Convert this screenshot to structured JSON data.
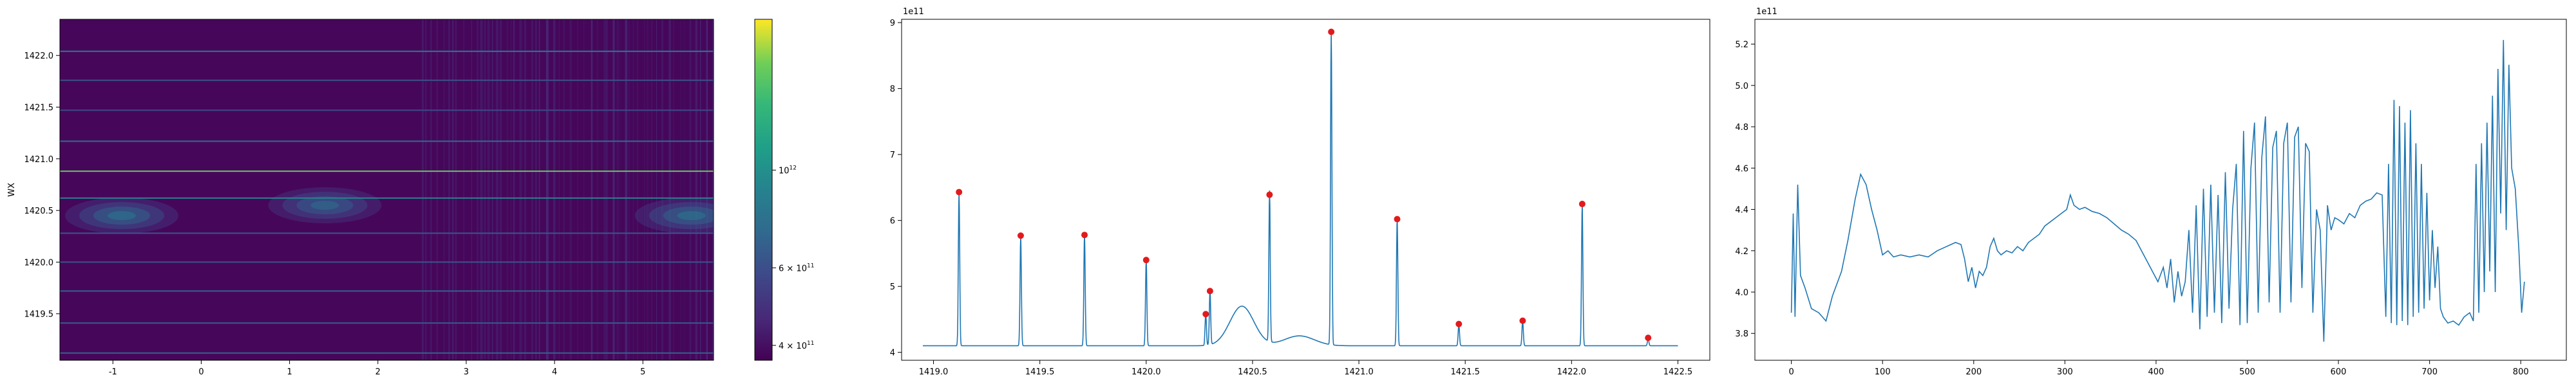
{
  "chart_data": [
    {
      "type": "heatmap",
      "title": "",
      "xlabel": "",
      "ylabel": "WX",
      "xlim": [
        -1.6,
        5.8
      ],
      "ylim": [
        1419.05,
        1422.35
      ],
      "x_ticks": [
        "-1",
        "0",
        "1",
        "2",
        "3",
        "4",
        "5"
      ],
      "x_tick_values": [
        -1,
        0,
        1,
        2,
        3,
        4,
        5
      ],
      "y_ticks": [
        "1419.5",
        "1420.0",
        "1420.5",
        "1421.0",
        "1421.5",
        "1422.0"
      ],
      "y_tick_values": [
        1419.5,
        1420.0,
        1420.5,
        1421.0,
        1421.5,
        1422.0
      ],
      "colormap": "viridis",
      "colorbar": {
        "scale": "log",
        "ticks": [
          {
            "value": 400000000000,
            "label": "4 × 10^11",
            "base": "4 × 10",
            "exp": "11"
          },
          {
            "value": 600000000000,
            "label": "6 × 10^11",
            "base": "6 × 10",
            "exp": "11"
          },
          {
            "value": 1000000000000,
            "label": "10^12",
            "base": "10",
            "exp": "12"
          }
        ],
        "range": [
          370000000000,
          2200000000000
        ]
      },
      "horizontal_lines": [
        {
          "y": 1419.12,
          "level": 0.35
        },
        {
          "y": 1419.41,
          "level": 0.32
        },
        {
          "y": 1419.72,
          "level": 0.35
        },
        {
          "y": 1420.0,
          "level": 0.3
        },
        {
          "y": 1420.28,
          "level": 0.3
        },
        {
          "y": 1420.62,
          "level": 0.5
        },
        {
          "y": 1420.88,
          "level": 0.85
        },
        {
          "y": 1421.17,
          "level": 0.4
        },
        {
          "y": 1421.47,
          "level": 0.25
        },
        {
          "y": 1421.76,
          "level": 0.28
        },
        {
          "y": 1422.04,
          "level": 0.45
        }
      ],
      "blobs": [
        {
          "x": -0.9,
          "y": 1420.45,
          "level": 0.5
        },
        {
          "x": 1.4,
          "y": 1420.55,
          "level": 0.45
        },
        {
          "x": 5.55,
          "y": 1420.45,
          "level": 0.5
        }
      ]
    },
    {
      "type": "line",
      "title": "",
      "xlabel": "",
      "ylabel": "",
      "offset_label": "1e11",
      "xlim": [
        1418.85,
        1422.65
      ],
      "ylim": [
        3.88,
        9.05
      ],
      "x_ticks": [
        "1419.0",
        "1419.5",
        "1420.0",
        "1420.5",
        "1421.0",
        "1421.5",
        "1422.0",
        "1422.5"
      ],
      "x_tick_values": [
        1419.0,
        1419.5,
        1420.0,
        1420.5,
        1421.0,
        1421.5,
        1422.0,
        1422.5
      ],
      "y_ticks": [
        "4",
        "5",
        "6",
        "7",
        "8",
        "9"
      ],
      "y_tick_values": [
        4,
        5,
        6,
        7,
        8,
        9
      ],
      "baseline": 4.1,
      "peaks": [
        {
          "x": 1419.12,
          "y": 6.43
        },
        {
          "x": 1419.41,
          "y": 5.77
        },
        {
          "x": 1419.71,
          "y": 5.78
        },
        {
          "x": 1420.0,
          "y": 5.4
        },
        {
          "x": 1420.28,
          "y": 4.58
        },
        {
          "x": 1420.3,
          "y": 4.93
        },
        {
          "x": 1420.58,
          "y": 6.39
        },
        {
          "x": 1420.87,
          "y": 8.86
        },
        {
          "x": 1421.18,
          "y": 6.02
        },
        {
          "x": 1421.47,
          "y": 4.43
        },
        {
          "x": 1421.77,
          "y": 4.48
        },
        {
          "x": 1422.05,
          "y": 6.25
        },
        {
          "x": 1422.36,
          "y": 4.22
        }
      ],
      "bumps": [
        {
          "x": 1420.45,
          "height": 0.6,
          "width": 0.08
        },
        {
          "x": 1420.72,
          "height": 0.15,
          "width": 0.1
        }
      ]
    },
    {
      "type": "line",
      "title": "",
      "xlabel": "",
      "ylabel": "",
      "offset_label": "1e11",
      "xlim": [
        -40,
        850
      ],
      "ylim": [
        3.67,
        5.32
      ],
      "x_ticks": [
        "0",
        "100",
        "200",
        "300",
        "400",
        "500",
        "600",
        "700",
        "800"
      ],
      "x_tick_values": [
        0,
        100,
        200,
        300,
        400,
        500,
        600,
        700,
        800
      ],
      "y_ticks": [
        "3.8",
        "4.0",
        "4.2",
        "4.4",
        "4.6",
        "4.8",
        "5.0",
        "5.2"
      ],
      "y_tick_values": [
        3.8,
        4.0,
        4.2,
        4.4,
        4.6,
        4.8,
        5.0,
        5.2
      ],
      "points": [
        [
          0,
          3.9
        ],
        [
          2,
          4.38
        ],
        [
          4,
          3.88
        ],
        [
          7,
          4.52
        ],
        [
          10,
          4.08
        ],
        [
          15,
          4.02
        ],
        [
          22,
          3.92
        ],
        [
          30,
          3.9
        ],
        [
          38,
          3.86
        ],
        [
          45,
          3.98
        ],
        [
          55,
          4.1
        ],
        [
          62,
          4.25
        ],
        [
          70,
          4.45
        ],
        [
          76,
          4.57
        ],
        [
          82,
          4.52
        ],
        [
          88,
          4.4
        ],
        [
          94,
          4.3
        ],
        [
          100,
          4.18
        ],
        [
          106,
          4.2
        ],
        [
          112,
          4.17
        ],
        [
          120,
          4.18
        ],
        [
          130,
          4.17
        ],
        [
          140,
          4.18
        ],
        [
          150,
          4.17
        ],
        [
          160,
          4.2
        ],
        [
          170,
          4.22
        ],
        [
          180,
          4.24
        ],
        [
          186,
          4.23
        ],
        [
          190,
          4.16
        ],
        [
          194,
          4.05
        ],
        [
          198,
          4.12
        ],
        [
          202,
          4.02
        ],
        [
          206,
          4.1
        ],
        [
          210,
          4.08
        ],
        [
          214,
          4.12
        ],
        [
          218,
          4.22
        ],
        [
          222,
          4.26
        ],
        [
          226,
          4.2
        ],
        [
          230,
          4.18
        ],
        [
          236,
          4.2
        ],
        [
          242,
          4.19
        ],
        [
          248,
          4.22
        ],
        [
          254,
          4.2
        ],
        [
          260,
          4.24
        ],
        [
          266,
          4.26
        ],
        [
          272,
          4.28
        ],
        [
          278,
          4.32
        ],
        [
          284,
          4.34
        ],
        [
          290,
          4.36
        ],
        [
          296,
          4.38
        ],
        [
          302,
          4.4
        ],
        [
          306,
          4.47
        ],
        [
          310,
          4.42
        ],
        [
          316,
          4.4
        ],
        [
          322,
          4.41
        ],
        [
          330,
          4.39
        ],
        [
          338,
          4.38
        ],
        [
          346,
          4.36
        ],
        [
          354,
          4.33
        ],
        [
          362,
          4.3
        ],
        [
          370,
          4.28
        ],
        [
          378,
          4.25
        ],
        [
          384,
          4.2
        ],
        [
          390,
          4.15
        ],
        [
          396,
          4.1
        ],
        [
          402,
          4.05
        ],
        [
          408,
          4.12
        ],
        [
          412,
          4.02
        ],
        [
          416,
          4.16
        ],
        [
          420,
          3.95
        ],
        [
          424,
          4.1
        ],
        [
          428,
          3.98
        ],
        [
          432,
          4.05
        ],
        [
          436,
          4.3
        ],
        [
          440,
          3.9
        ],
        [
          444,
          4.42
        ],
        [
          448,
          3.82
        ],
        [
          452,
          4.5
        ],
        [
          456,
          3.88
        ],
        [
          460,
          4.52
        ],
        [
          464,
          3.9
        ],
        [
          468,
          4.47
        ],
        [
          472,
          3.85
        ],
        [
          476,
          4.58
        ],
        [
          480,
          3.92
        ],
        [
          484,
          4.4
        ],
        [
          488,
          4.62
        ],
        [
          492,
          3.84
        ],
        [
          496,
          4.78
        ],
        [
          500,
          3.85
        ],
        [
          504,
          4.6
        ],
        [
          508,
          4.82
        ],
        [
          512,
          3.9
        ],
        [
          516,
          4.65
        ],
        [
          520,
          4.85
        ],
        [
          524,
          3.95
        ],
        [
          528,
          4.7
        ],
        [
          532,
          4.78
        ],
        [
          536,
          3.9
        ],
        [
          540,
          4.72
        ],
        [
          544,
          4.82
        ],
        [
          548,
          3.95
        ],
        [
          552,
          4.75
        ],
        [
          556,
          4.8
        ],
        [
          560,
          4.02
        ],
        [
          564,
          4.72
        ],
        [
          568,
          4.68
        ],
        [
          572,
          3.9
        ],
        [
          576,
          4.4
        ],
        [
          580,
          4.3
        ],
        [
          584,
          3.76
        ],
        [
          588,
          4.42
        ],
        [
          592,
          4.3
        ],
        [
          596,
          4.36
        ],
        [
          600,
          4.35
        ],
        [
          606,
          4.33
        ],
        [
          612,
          4.38
        ],
        [
          618,
          4.36
        ],
        [
          624,
          4.42
        ],
        [
          630,
          4.44
        ],
        [
          636,
          4.45
        ],
        [
          642,
          4.48
        ],
        [
          648,
          4.47
        ],
        [
          652,
          3.88
        ],
        [
          655,
          4.62
        ],
        [
          658,
          3.85
        ],
        [
          661,
          4.93
        ],
        [
          664,
          3.84
        ],
        [
          667,
          4.9
        ],
        [
          670,
          3.86
        ],
        [
          673,
          4.82
        ],
        [
          676,
          3.84
        ],
        [
          679,
          4.88
        ],
        [
          682,
          3.88
        ],
        [
          685,
          4.72
        ],
        [
          688,
          3.9
        ],
        [
          691,
          4.62
        ],
        [
          694,
          3.92
        ],
        [
          697,
          4.48
        ],
        [
          700,
          3.96
        ],
        [
          703,
          4.3
        ],
        [
          706,
          4.02
        ],
        [
          709,
          4.22
        ],
        [
          712,
          3.92
        ],
        [
          715,
          3.88
        ],
        [
          720,
          3.85
        ],
        [
          726,
          3.86
        ],
        [
          732,
          3.84
        ],
        [
          738,
          3.88
        ],
        [
          744,
          3.9
        ],
        [
          748,
          3.86
        ],
        [
          751,
          4.62
        ],
        [
          754,
          3.9
        ],
        [
          757,
          4.72
        ],
        [
          760,
          4.0
        ],
        [
          763,
          4.82
        ],
        [
          766,
          4.1
        ],
        [
          769,
          4.95
        ],
        [
          772,
          4.0
        ],
        [
          775,
          5.08
        ],
        [
          778,
          4.38
        ],
        [
          781,
          5.22
        ],
        [
          784,
          4.3
        ],
        [
          787,
          5.1
        ],
        [
          790,
          4.6
        ],
        [
          794,
          4.5
        ],
        [
          798,
          4.2
        ],
        [
          801,
          3.9
        ],
        [
          804,
          4.05
        ]
      ]
    }
  ]
}
